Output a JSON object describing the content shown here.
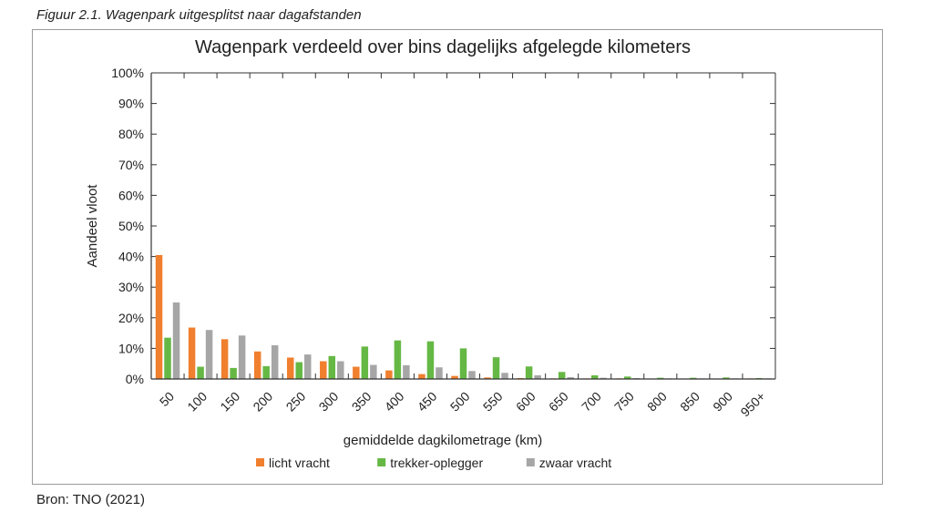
{
  "figure_caption": "Figuur 2.1. Wagenpark uitgesplitst naar dagafstanden",
  "source": "Bron: TNO (2021)",
  "colors": {
    "licht": "#f07f2e",
    "trekker": "#66b845",
    "zwaar": "#a6a6a6",
    "axis": "#333333",
    "frame": "#9a9a9a"
  },
  "chart_data": {
    "type": "bar",
    "title": "Wagenpark verdeeld over bins dagelijks afgelegde kilometers",
    "xlabel": "gemiddelde dagkilometrage (km)",
    "ylabel": "Aandeel vloot",
    "ylim": [
      0,
      100
    ],
    "yticks": [
      "0%",
      "10%",
      "20%",
      "30%",
      "40%",
      "50%",
      "60%",
      "70%",
      "80%",
      "90%",
      "100%"
    ],
    "categories": [
      "50",
      "100",
      "150",
      "200",
      "250",
      "300",
      "350",
      "400",
      "450",
      "500",
      "550",
      "600",
      "650",
      "700",
      "750",
      "800",
      "850",
      "900",
      "950+"
    ],
    "legend_position": "bottom",
    "series": [
      {
        "name": "licht vracht",
        "color": "#f07f2e",
        "values": [
          40.5,
          16.8,
          13.0,
          9.0,
          7.0,
          5.8,
          4.0,
          2.8,
          1.6,
          1.0,
          0.5,
          0.3,
          0.2,
          0.2,
          0.2,
          0.1,
          0.1,
          0.1,
          0.2
        ]
      },
      {
        "name": "trekker-oplegger",
        "color": "#66b845",
        "values": [
          13.5,
          4.0,
          3.6,
          4.2,
          5.5,
          7.5,
          10.6,
          12.6,
          12.3,
          10.0,
          7.1,
          4.1,
          2.3,
          1.2,
          0.8,
          0.4,
          0.4,
          0.5,
          0.3
        ]
      },
      {
        "name": "zwaar vracht",
        "color": "#a6a6a6",
        "values": [
          25.0,
          16.0,
          14.2,
          11.0,
          8.0,
          5.8,
          4.6,
          4.5,
          3.8,
          2.6,
          2.0,
          1.2,
          0.6,
          0.4,
          0.3,
          0.2,
          0.2,
          0.2,
          0.2
        ]
      }
    ]
  }
}
